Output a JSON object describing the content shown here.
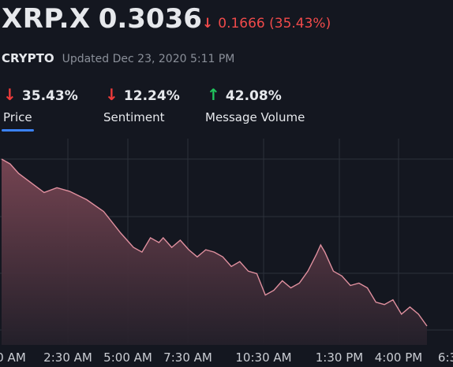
{
  "header": {
    "ticker": "XRP.X",
    "price": "0.3036",
    "change_arrow": "↓",
    "change_text": "0.1666 (35.43%)",
    "asset_type": "CRYPTO",
    "updated": "Updated Dec 23, 2020 5:11 PM"
  },
  "metrics": [
    {
      "direction": "down",
      "arrow": "↓",
      "value": "35.43%",
      "label": "Price",
      "selected": true
    },
    {
      "direction": "down",
      "arrow": "↓",
      "value": "12.24%",
      "label": "Sentiment",
      "selected": false
    },
    {
      "direction": "up",
      "arrow": "↑",
      "value": "42.08%",
      "label": "Message Volume",
      "selected": false
    }
  ],
  "colors": {
    "background": "#141720",
    "line": "#e0909f",
    "down": "#ef3b3b",
    "up": "#21c55d",
    "selected_underline": "#3b82f6"
  },
  "chart_data": {
    "type": "area",
    "x_ticks": [
      "0 AM",
      "2:30 AM",
      "5:00 AM",
      "7:30 AM",
      "10:30 AM",
      "1:30 PM",
      "4:00 PM",
      "6:3"
    ],
    "grid": true,
    "x": [
      0.0,
      0.02,
      0.04,
      0.07,
      0.1,
      0.13,
      0.16,
      0.2,
      0.24,
      0.28,
      0.3,
      0.31,
      0.33,
      0.35,
      0.37,
      0.38,
      0.4,
      0.42,
      0.44,
      0.46,
      0.48,
      0.5,
      0.52,
      0.54,
      0.56,
      0.58,
      0.6,
      0.62,
      0.64,
      0.66,
      0.68,
      0.7,
      0.72,
      0.74,
      0.75,
      0.76,
      0.78,
      0.8,
      0.82,
      0.84,
      0.86,
      0.88,
      0.9,
      0.92,
      0.94,
      0.96,
      0.98,
      1.0
    ],
    "y": [
      100,
      96,
      88,
      80,
      72,
      76,
      73,
      66,
      56,
      38,
      30,
      26,
      22,
      34,
      30,
      34,
      26,
      32,
      24,
      18,
      24,
      22,
      18,
      10,
      14,
      6,
      4,
      -14,
      -10,
      -2,
      -8,
      -4,
      6,
      20,
      28,
      22,
      6,
      2,
      -6,
      -4,
      -8,
      -20,
      -22,
      -18,
      -30,
      -24,
      -30,
      -40
    ]
  }
}
